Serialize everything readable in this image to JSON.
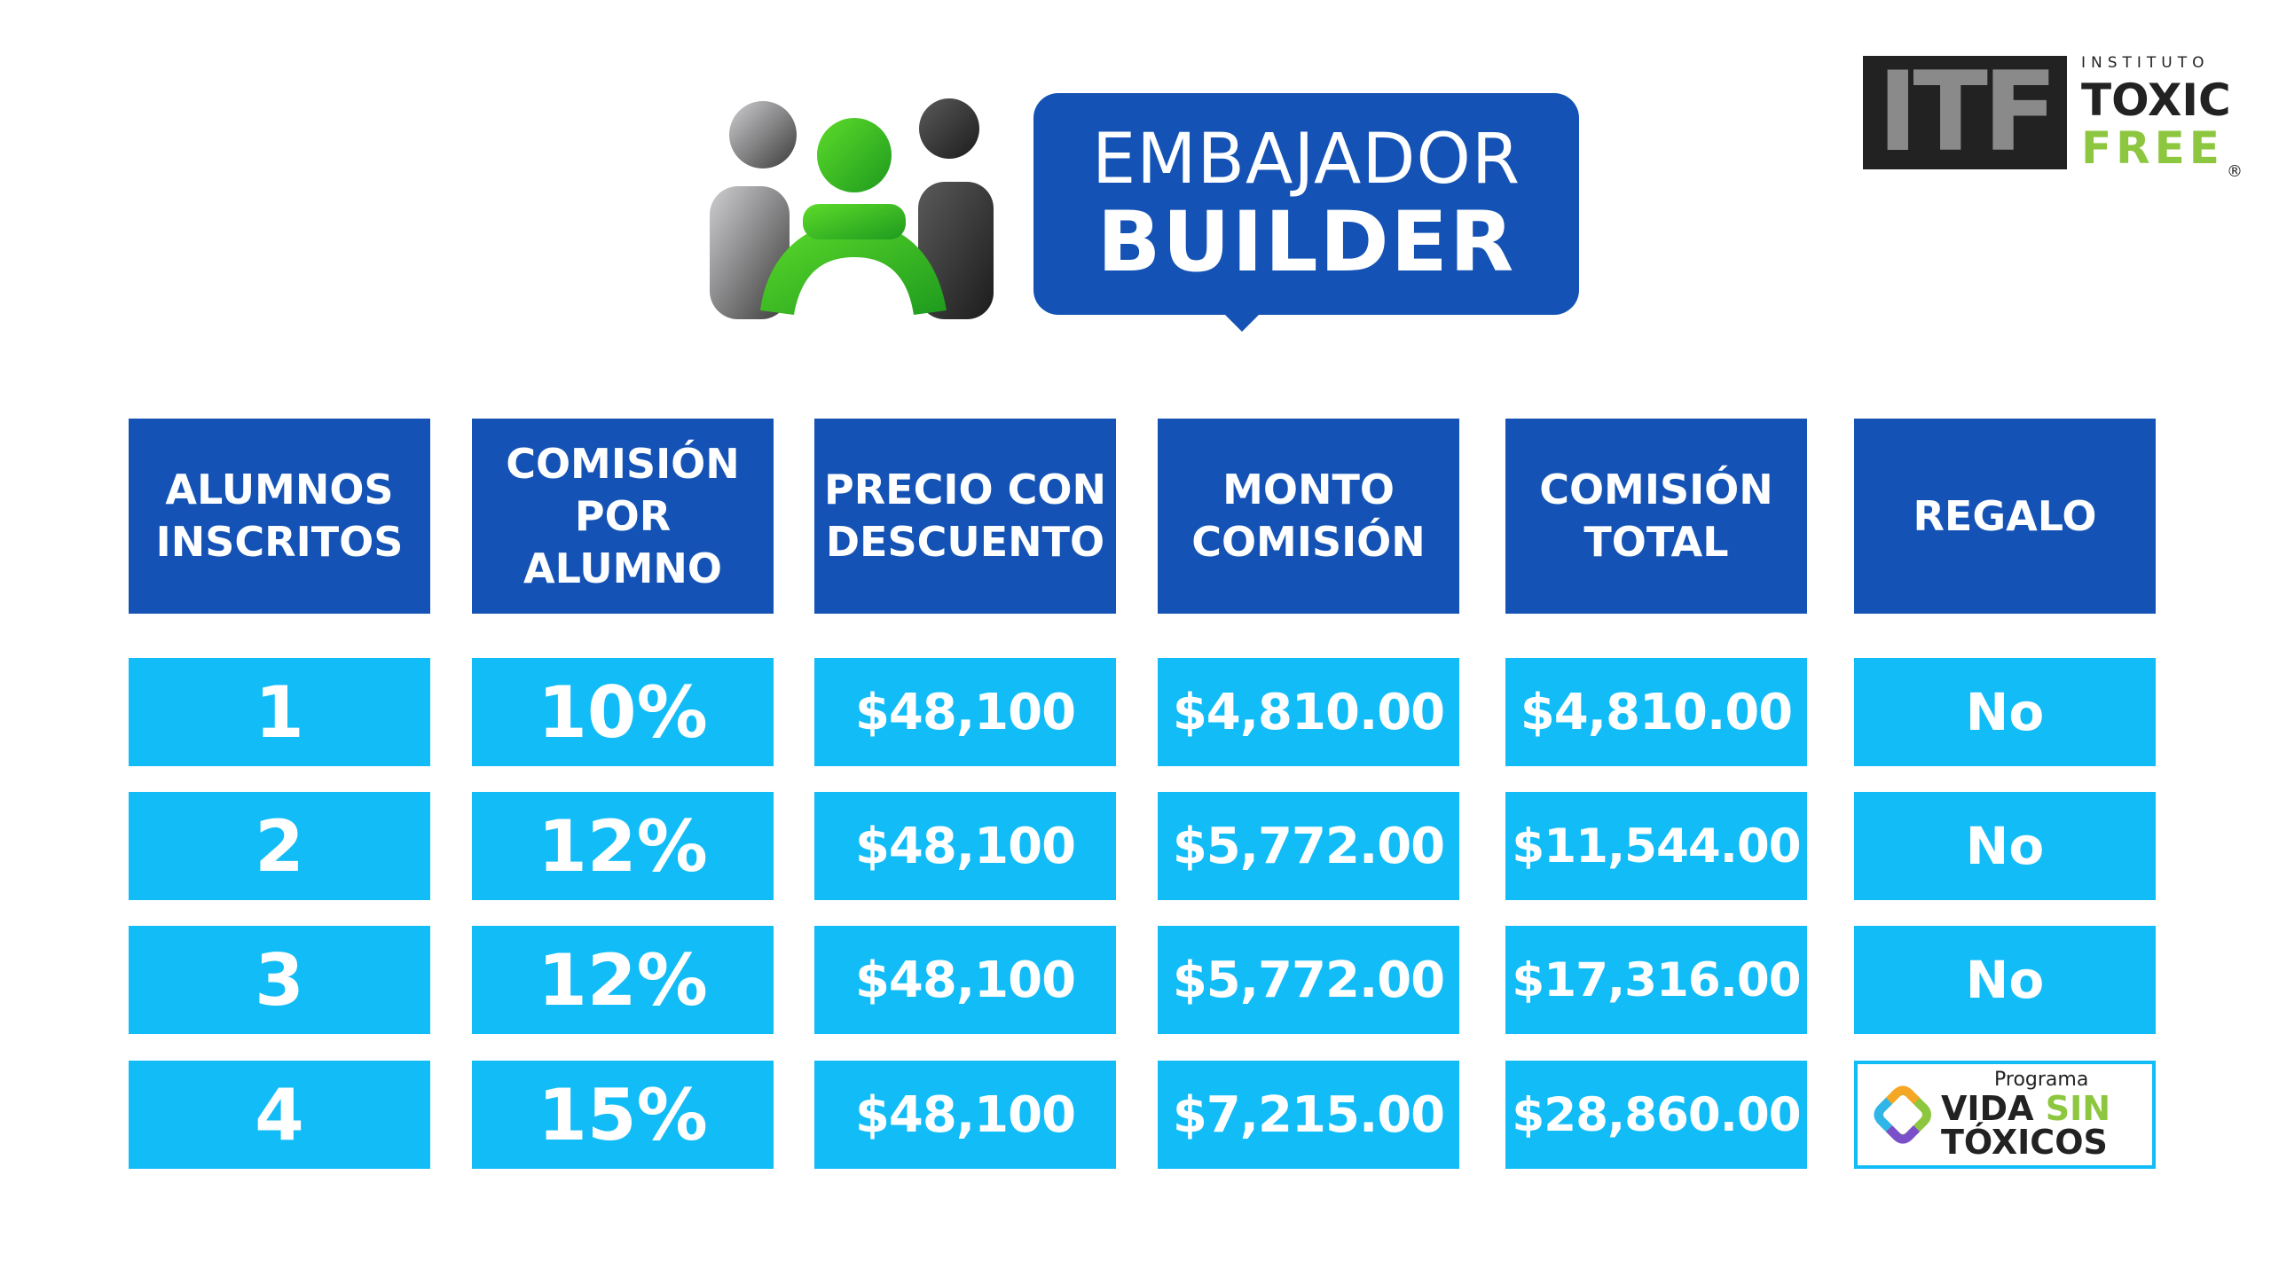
{
  "branding": {
    "title_line1": "EMBAJADOR",
    "title_line2": "BUILDER",
    "itf_letters": "ITF",
    "itf_instituto": "INSTITUTO",
    "itf_toxic": "TOXIC",
    "itf_free": "FREE",
    "itf_registered": "®",
    "colors": {
      "brand_blue": "#1453b5",
      "cell_cyan": "#12bcf7",
      "accent_green": "#8dc63f"
    }
  },
  "table": {
    "headers": [
      "ALUMNOS INSCRITOS",
      "COMISIÓN POR ALUMNO",
      "PRECIO CON DESCUENTO",
      "MONTO COMISIÓN",
      "COMISIÓN TOTAL",
      "REGALO"
    ],
    "rows": [
      [
        "1",
        "10%",
        "$48,100",
        "$4,810.00",
        "$4,810.00",
        "No"
      ],
      [
        "2",
        "12%",
        "$48,100",
        "$5,772.00",
        "$11,544.00",
        "No"
      ],
      [
        "3",
        "12%",
        "$48,100",
        "$5,772.00",
        "$17,316.00",
        "No"
      ],
      [
        "4",
        "15%",
        "$48,100",
        "$7,215.00",
        "$28,860.00",
        ""
      ]
    ]
  },
  "gift_badge": {
    "programa": "Programa",
    "vida": "VIDA",
    "sin": "SIN",
    "toxicos": "TÓXICOS"
  }
}
